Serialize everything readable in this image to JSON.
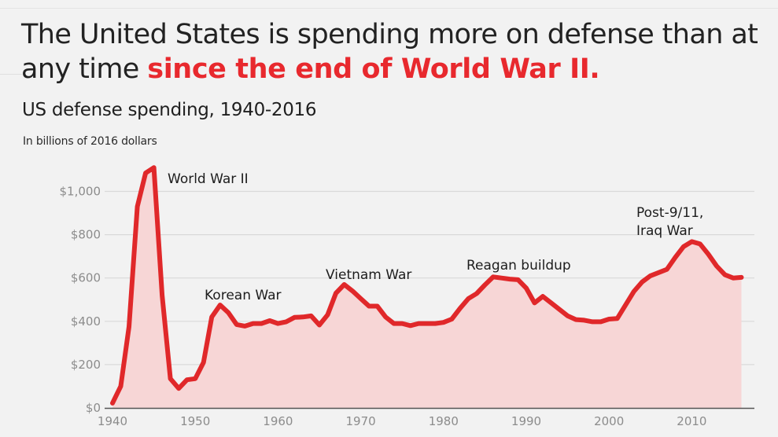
{
  "headline": {
    "plain": "The United States is spending more on defense than at any time ",
    "emphasis": "since the end of World War II."
  },
  "colors": {
    "accent": "#e8292e",
    "line": "#e0282a",
    "fill": "#f7d6d6",
    "grid": "#d9d9d9",
    "axis": "#555555",
    "tick_text": "#8c8c8c"
  },
  "chart_data": {
    "type": "area",
    "title": "US defense spending, 1940-2016",
    "subtitle": "In billions of 2016 dollars",
    "xlabel": "",
    "ylabel": "",
    "xlim": [
      1939,
      2018
    ],
    "ylim": [
      0,
      1000
    ],
    "grid": true,
    "x_ticks": [
      1940,
      1950,
      1960,
      1970,
      1980,
      1990,
      2000,
      2010
    ],
    "x_tick_labels": [
      "1940",
      "1950",
      "1960",
      "1970",
      "1980",
      "1990",
      "2000",
      "2010"
    ],
    "y_ticks": [
      0,
      200,
      400,
      600,
      800,
      1000
    ],
    "y_tick_labels": [
      "$0",
      "$200",
      "$400",
      "$600",
      "$800",
      "$1,000"
    ],
    "series": [
      {
        "name": "US defense spending",
        "x": [
          1940,
          1941,
          1942,
          1943,
          1944,
          1945,
          1946,
          1947,
          1948,
          1949,
          1950,
          1951,
          1952,
          1953,
          1954,
          1955,
          1956,
          1957,
          1958,
          1959,
          1960,
          1961,
          1962,
          1963,
          1964,
          1965,
          1966,
          1967,
          1968,
          1969,
          1970,
          1971,
          1972,
          1973,
          1974,
          1975,
          1976,
          1977,
          1978,
          1979,
          1980,
          1981,
          1982,
          1983,
          1984,
          1985,
          1986,
          1987,
          1988,
          1989,
          1990,
          1991,
          1992,
          1993,
          1994,
          1995,
          1996,
          1997,
          1998,
          1999,
          2000,
          2001,
          2002,
          2003,
          2004,
          2005,
          2006,
          2007,
          2008,
          2009,
          2010,
          2011,
          2012,
          2013,
          2014,
          2015,
          2016
        ],
        "values": [
          22,
          100,
          375,
          930,
          1085,
          1110,
          520,
          135,
          90,
          130,
          135,
          210,
          420,
          475,
          440,
          385,
          378,
          390,
          390,
          403,
          390,
          398,
          418,
          420,
          425,
          383,
          430,
          530,
          570,
          540,
          505,
          470,
          470,
          420,
          390,
          390,
          380,
          390,
          390,
          390,
          395,
          410,
          460,
          505,
          528,
          568,
          605,
          600,
          595,
          592,
          553,
          485,
          515,
          485,
          455,
          425,
          408,
          405,
          398,
          398,
          410,
          413,
          475,
          538,
          582,
          610,
          625,
          640,
          695,
          745,
          768,
          757,
          710,
          655,
          615,
          600,
          603
        ]
      }
    ],
    "annotations": [
      {
        "text": "World War II",
        "year": 1945
      },
      {
        "text": "Korean War",
        "year": 1953
      },
      {
        "text": "Vietnam War",
        "year": 1968
      },
      {
        "text": "Reagan buildup",
        "year": 1986
      },
      {
        "text": "Post-9/11,",
        "year": 2009
      },
      {
        "text": "Iraq War",
        "year": 2009
      }
    ],
    "legend": "none"
  }
}
